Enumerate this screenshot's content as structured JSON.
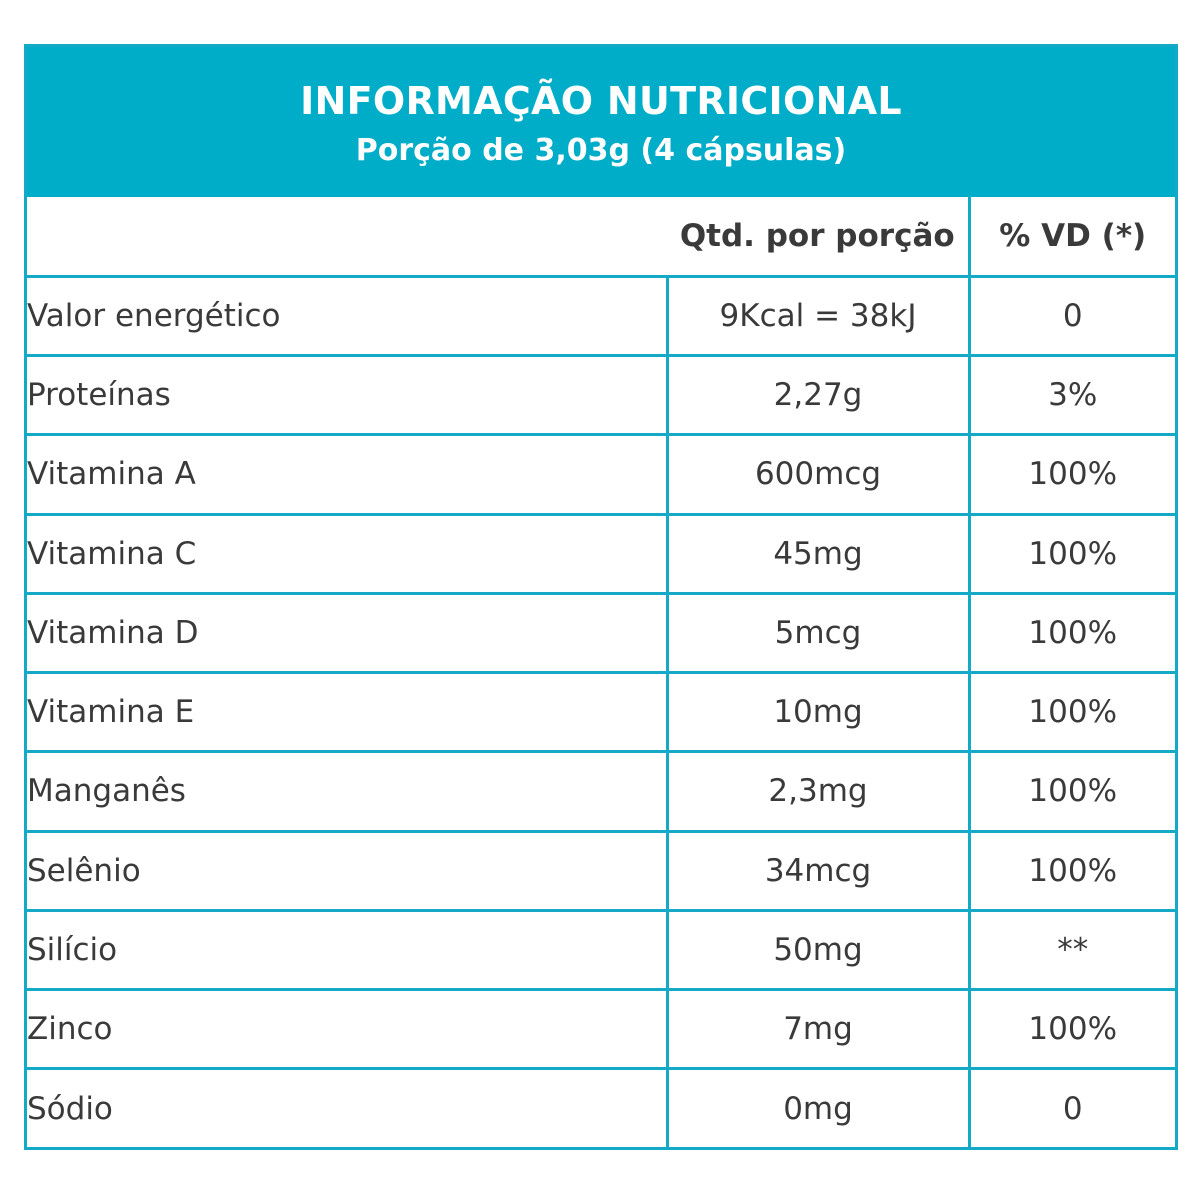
{
  "header": {
    "title": "INFORMAÇÃO NUTRICIONAL",
    "subtitle": "Porção de 3,03g (4 cápsulas)"
  },
  "table": {
    "columns": [
      "",
      "Qtd. por porção",
      "% VD (*)"
    ],
    "rows": [
      {
        "name": "Valor energético",
        "qty": "9Kcal = 38kJ",
        "vd": "0"
      },
      {
        "name": "Proteínas",
        "qty": "2,27g",
        "vd": "3%"
      },
      {
        "name": "Vitamina A",
        "qty": "600mcg",
        "vd": "100%"
      },
      {
        "name": "Vitamina C",
        "qty": "45mg",
        "vd": "100%"
      },
      {
        "name": "Vitamina D",
        "qty": "5mcg",
        "vd": "100%"
      },
      {
        "name": "Vitamina E",
        "qty": "10mg",
        "vd": "100%"
      },
      {
        "name": "Manganês",
        "qty": "2,3mg",
        "vd": "100%"
      },
      {
        "name": "Selênio",
        "qty": "34mcg",
        "vd": "100%"
      },
      {
        "name": "Silício",
        "qty": "50mg",
        "vd": "**"
      },
      {
        "name": "Zinco",
        "qty": "7mg",
        "vd": "100%"
      },
      {
        "name": "Sódio",
        "qty": "0mg",
        "vd": "0"
      }
    ]
  },
  "colors": {
    "accent": "#00adc9",
    "border": "#14a9c7",
    "text": "#3a3a3a",
    "title_text": "#ffffff"
  }
}
